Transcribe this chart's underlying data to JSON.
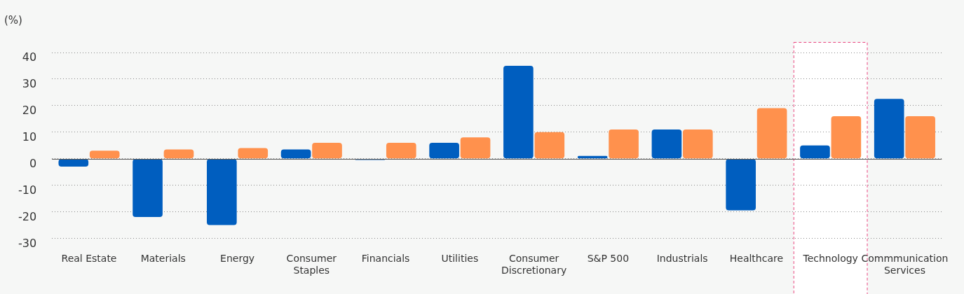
{
  "chart_data": {
    "type": "bar",
    "ylabel": "(%)",
    "categories": [
      "Real Estate",
      "Materials",
      "Energy",
      "Consumer\nStaples",
      "Financials",
      "Utilities",
      "Consumer\nDiscretionary",
      "S&P 500",
      "Industrials",
      "Healthcare",
      "Technology",
      "Commmunication\nServices"
    ],
    "series": [
      {
        "color": "#005ebf",
        "values": [
          -3,
          -22,
          -25,
          3.5,
          -0.5,
          6,
          35,
          1,
          11,
          -19.5,
          5,
          22.5
        ]
      },
      {
        "color": "#ff914d",
        "values": [
          3,
          3.5,
          4,
          6,
          6,
          8,
          10,
          11,
          11,
          19,
          16,
          16
        ]
      }
    ],
    "ylim": [
      -30,
      40
    ],
    "yticks": [
      -30,
      -20,
      -10,
      0,
      10,
      20,
      30,
      40
    ],
    "grid": "y",
    "legend": false,
    "bands": [
      {
        "axis": "x",
        "from": "Technology",
        "to": "Technology",
        "color": "#ffffff"
      }
    ]
  }
}
